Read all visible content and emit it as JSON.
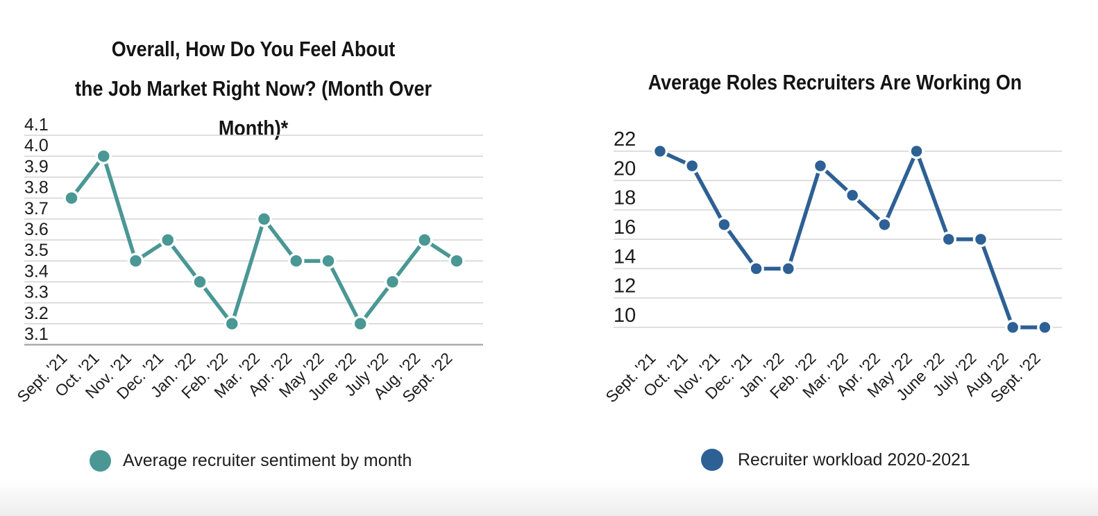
{
  "page": {
    "background": "#ffffff"
  },
  "chart_data": [
    {
      "type": "line",
      "title": "Overall, How Do You Feel About the Job Market Right Now? (Month Over Month)*",
      "title_lines": [
        "Overall, How Do You Feel About",
        "the Job Market Right Now? (Month Over Month)*"
      ],
      "categories": [
        "Sept. '21",
        "Oct. '21",
        "Nov. '21",
        "Dec. '21",
        "Jan. '22",
        "Feb. '22",
        "Mar. '22",
        "Apr. '22",
        "May '22",
        "June '22",
        "July '22",
        "Aug. '22",
        "Sept. '22"
      ],
      "series": [
        {
          "name": "Average recruiter sentiment by month",
          "values": [
            3.8,
            4.0,
            3.5,
            3.6,
            3.4,
            3.2,
            3.7,
            3.5,
            3.5,
            3.2,
            3.4,
            3.6,
            3.5
          ],
          "color": "#4a9795"
        }
      ],
      "ylim": [
        3.1,
        4.1
      ],
      "ytick_step": 0.1,
      "ytick_labels": [
        "4.1",
        "4.0",
        "3.9",
        "3.8",
        "3.7",
        "3.6",
        "3.5",
        "3.4",
        "3.3",
        "3.2",
        "3.1"
      ],
      "xlabel": "",
      "ylabel": "",
      "grid": "horizontal",
      "legend_label": "Average recruiter sentiment by month",
      "legend_position": "bottom"
    },
    {
      "type": "line",
      "title": "Average Roles Recruiters Are Working On",
      "title_lines": [
        "Average Roles Recruiters Are Working On"
      ],
      "categories": [
        "Sept. '21",
        "Oct. '21",
        "Nov. '21",
        "Dec. '21",
        "Jan. '22",
        "Feb. '22",
        "Mar. '22",
        "Apr. '22",
        "May '22",
        "June '22",
        "July '22",
        "Aug '22",
        "Sept. '22"
      ],
      "series": [
        {
          "name": "Recruiter workload 2020-2021",
          "values": [
            22,
            21,
            17,
            14,
            14,
            21,
            19,
            17,
            22,
            16,
            16,
            10,
            10
          ],
          "color": "#2d6094"
        }
      ],
      "ylim": [
        10,
        22
      ],
      "ytick_step": 2,
      "ytick_labels": [
        "22",
        "20",
        "18",
        "16",
        "14",
        "12",
        "10"
      ],
      "xlabel": "",
      "ylabel": "",
      "grid": "horizontal",
      "legend_label": "Recruiter workload 2020-2021",
      "legend_position": "bottom"
    }
  ]
}
